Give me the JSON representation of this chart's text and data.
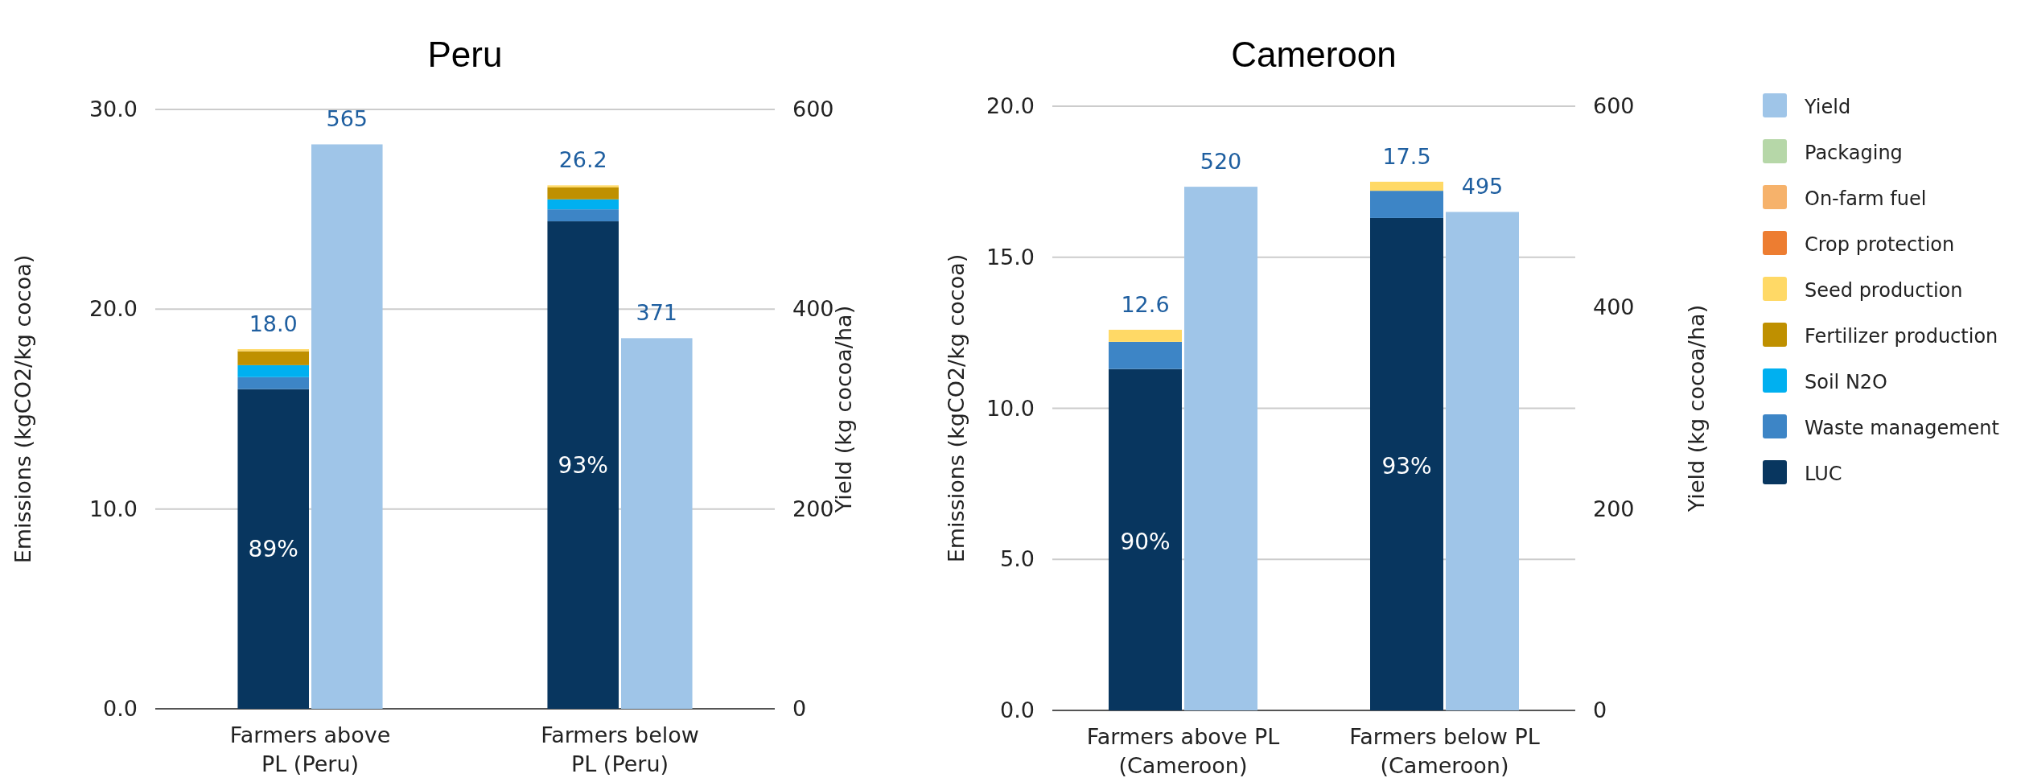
{
  "chart_data": [
    {
      "type": "bar",
      "title": "Peru",
      "ylabel": "Emissions (kgCO2/kg cocoa)",
      "y2label": "Yield (kg cocoa/ha)",
      "categories": [
        "Farmers above PL (Peru)",
        "Farmers below PL (Peru)"
      ],
      "stacked": true,
      "series": [
        {
          "color": "#08365f",
          "values": [
            16.0,
            24.4
          ]
        },
        {
          "color": "#3d85c6",
          "values": [
            0.6,
            0.6
          ]
        },
        {
          "color": "#00b0f0",
          "values": [
            0.6,
            0.5
          ]
        },
        {
          "color": "#bf9000",
          "values": [
            0.7,
            0.6
          ]
        },
        {
          "color": "#ffd966",
          "values": [
            0.1,
            0.1
          ]
        },
        {
          "color": "#ed7d31",
          "values": [
            0,
            0
          ]
        },
        {
          "color": "#f6b26b",
          "values": [
            0,
            0
          ]
        },
        {
          "color": "#b6d7a8",
          "values": [
            0,
            0
          ]
        },
        {
          "color": "#9fc5e8",
          "axis": "y2",
          "values": [
            565,
            371
          ],
          "value_labels": [
            "565",
            "371"
          ]
        }
      ],
      "annotations": [
        {
          "text": "89%",
          "x": "Farmers above PL (Peru)",
          "y": 8.0
        },
        {
          "text": "93%",
          "x": "Farmers below PL (Peru)",
          "y": 12.2
        }
      ],
      "totals": [
        "18.0",
        "26.2"
      ],
      "ylim": [
        0,
        30
      ],
      "yticks": [
        {
          "value": 0,
          "label": "0.0"
        },
        {
          "value": 10,
          "label": "10.0"
        },
        {
          "value": 20,
          "label": "20.0"
        },
        {
          "value": 30,
          "label": "30.0"
        }
      ],
      "y2lim": [
        0,
        600
      ],
      "y2ticks": [
        0,
        200,
        400,
        600
      ],
      "grid": "y",
      "legend": false
    },
    {
      "type": "bar",
      "title": "Cameroon",
      "ylabel": "Emissions (kgCO2/kg cocoa)",
      "y2label": "Yield (kg cocoa/ha)",
      "categories": [
        "Farmers above PL (Cameroon)",
        "Farmers below PL (Cameroon)"
      ],
      "stacked": true,
      "series": [
        {
          "name": "LUC",
          "color": "#08365f",
          "values": [
            11.3,
            16.3
          ]
        },
        {
          "name": "Waste management",
          "color": "#3d85c6",
          "values": [
            0.9,
            0.9
          ]
        },
        {
          "name": "Soil N2O",
          "color": "#00b0f0",
          "values": [
            0,
            0
          ]
        },
        {
          "name": "Fertilizer production",
          "color": "#bf9000",
          "values": [
            0,
            0
          ]
        },
        {
          "name": "Seed production",
          "color": "#ffd966",
          "values": [
            0.4,
            0.3
          ]
        },
        {
          "name": "Crop protection",
          "color": "#ed7d31",
          "values": [
            0,
            0
          ]
        },
        {
          "name": "On-farm fuel",
          "color": "#f6b26b",
          "values": [
            0,
            0
          ]
        },
        {
          "name": "Packaging",
          "color": "#b6d7a8",
          "values": [
            0,
            0
          ]
        },
        {
          "name": "Yield",
          "color": "#9fc5e8",
          "axis": "y2",
          "values": [
            520,
            495
          ],
          "value_labels": [
            "520",
            "495"
          ]
        }
      ],
      "annotations": [
        {
          "text": "90%",
          "x": "Farmers above PL (Cameroon)",
          "y": 5.6
        },
        {
          "text": "93%",
          "x": "Farmers below PL (Cameroon)",
          "y": 8.1
        }
      ],
      "totals": [
        "12.6",
        "17.5"
      ],
      "ylim": [
        0,
        20
      ],
      "yticks": [
        {
          "value": 0,
          "label": "0.0"
        },
        {
          "value": 5,
          "label": "5.0"
        },
        {
          "value": 10,
          "label": "10.0"
        },
        {
          "value": 15,
          "label": "15.0"
        },
        {
          "value": 20,
          "label": "20.0"
        }
      ],
      "y2lim": [
        0,
        600
      ],
      "y2ticks": [
        0,
        200,
        400,
        600
      ],
      "grid": "y",
      "legend": "right"
    }
  ]
}
